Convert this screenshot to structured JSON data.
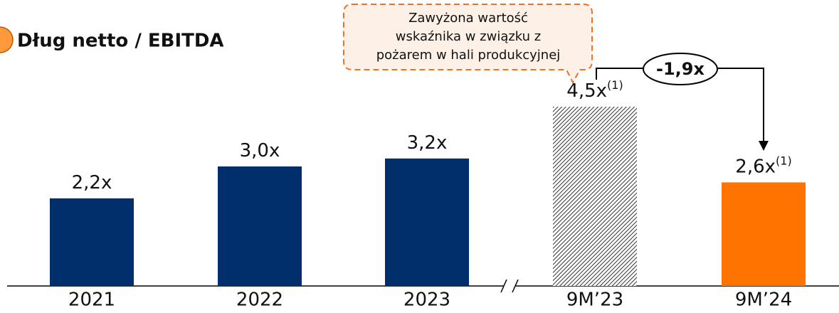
{
  "chart_data": {
    "type": "bar",
    "title": "Dług netto / EBITDA",
    "categories": [
      "2021",
      "2022",
      "2023",
      "9M’23",
      "9M’24"
    ],
    "values": [
      2.2,
      3.0,
      3.2,
      4.5,
      2.6
    ],
    "value_labels": [
      "2,2x",
      "3,0x",
      "3,2x",
      "4,5x",
      "2,6x"
    ],
    "value_label_notes": [
      null,
      null,
      null,
      "(1)",
      "(1)"
    ],
    "colors": [
      "#002f6c",
      "#002f6c",
      "#002f6c",
      "#333333",
      "#ff7300"
    ],
    "hatched": [
      false,
      false,
      false,
      true,
      false
    ],
    "ylim": [
      0,
      5
    ],
    "annotation": [
      "Zawyżona wartość",
      "wskaźnika w związku z",
      "pożarem w hali produkcyjnej"
    ],
    "change_label": "-1,9x"
  }
}
